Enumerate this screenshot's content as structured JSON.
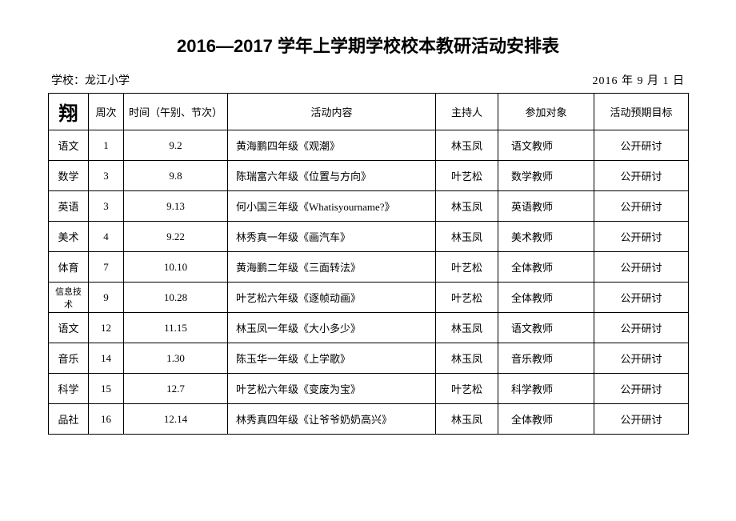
{
  "title": "2016—2017 学年上学期学校校本教研活动安排表",
  "meta": {
    "school_label": "学校：龙江小学",
    "date": "2016 年 9 月 1 日"
  },
  "table": {
    "corner": "翔",
    "headers": {
      "week": "周次",
      "time": "时间（午别、节次）",
      "activity": "活动内容",
      "host": "主持人",
      "participants": "参加对象",
      "goal": "活动预期目标"
    },
    "rows": [
      {
        "subject": "语文",
        "week": "1",
        "time": "9.2",
        "activity": "黄海鹏四年级《观潮》",
        "host": "林玉凤",
        "participants": "语文教师",
        "goal": "公开研讨"
      },
      {
        "subject": "数学",
        "week": "3",
        "time": "9.8",
        "activity": "陈瑞富六年级《位置与方向》",
        "host": "叶艺松",
        "participants": "数学教师",
        "goal": "公开研讨"
      },
      {
        "subject": "英语",
        "week": "3",
        "time": "9.13",
        "activity": "何小国三年级《Whatisyourname?》",
        "host": "林玉凤",
        "participants": "英语教师",
        "goal": "公开研讨"
      },
      {
        "subject": "美术",
        "week": "4",
        "time": "9.22",
        "activity": "林秀真一年级《画汽车》",
        "host": "林玉凤",
        "participants": "美术教师",
        "goal": "公开研讨"
      },
      {
        "subject": "体育",
        "week": "7",
        "time": "10.10",
        "activity": "黄海鹏二年级《三面转法》",
        "host": "叶艺松",
        "participants": "全体教师",
        "goal": "公开研讨"
      },
      {
        "subject": "信息技术",
        "week": "9",
        "time": "10.28",
        "activity": "叶艺松六年级《逐帧动画》",
        "host": "叶艺松",
        "participants": "全体教师",
        "goal": "公开研讨",
        "small": true
      },
      {
        "subject": "语文",
        "week": "12",
        "time": "11.15",
        "activity": "林玉凤一年级《大小多少》",
        "host": "林玉凤",
        "participants": "语文教师",
        "goal": "公开研讨"
      },
      {
        "subject": "音乐",
        "week": "14",
        "time": "1.30",
        "activity": "陈玉华一年级《上学歌》",
        "host": "林玉凤",
        "participants": "音乐教师",
        "goal": "公开研讨"
      },
      {
        "subject": "科学",
        "week": "15",
        "time": "12.7",
        "activity": "叶艺松六年级《变废为宝》",
        "host": "叶艺松",
        "participants": "科学教师",
        "goal": "公开研讨"
      },
      {
        "subject": "品社",
        "week": "16",
        "time": "12.14",
        "activity": "林秀真四年级《让爷爷奶奶高兴》",
        "host": "林玉凤",
        "participants": "全体教师",
        "goal": "公开研讨"
      }
    ]
  }
}
